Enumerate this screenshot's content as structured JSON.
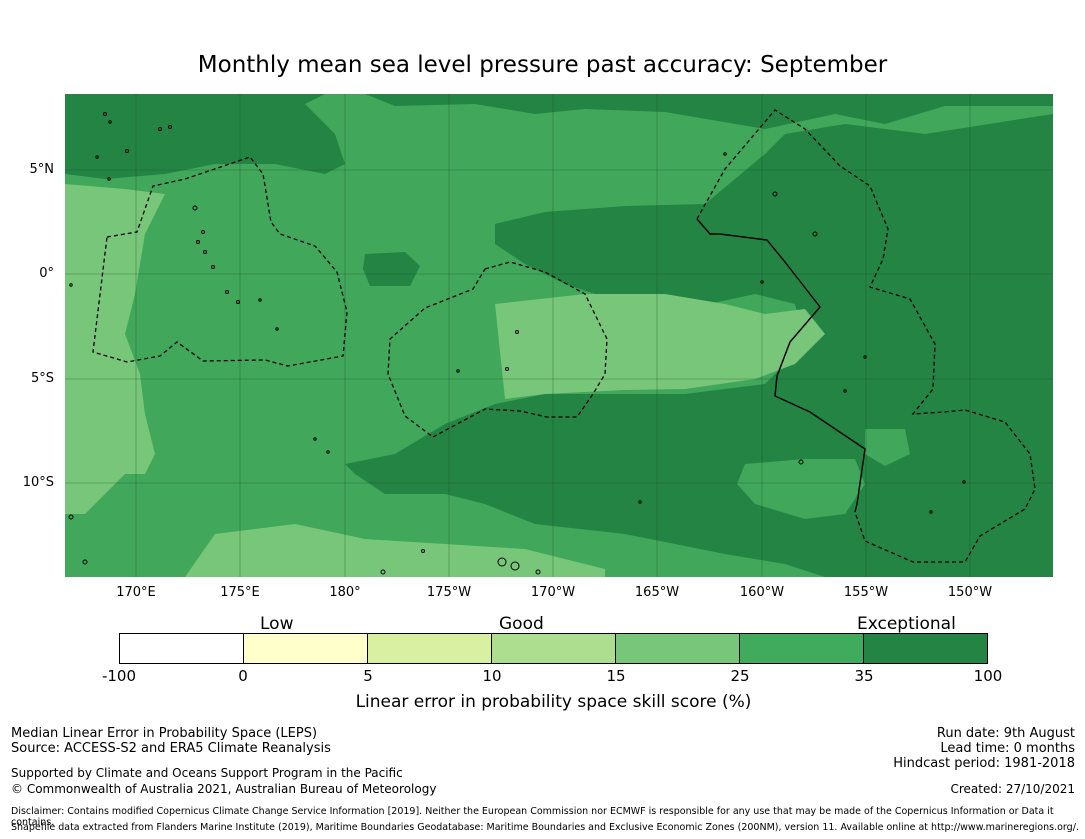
{
  "title": "Monthly mean sea level pressure past accuracy: September",
  "map": {
    "colors": {
      "zone_mid": "#40a75b",
      "zone_light": "#78c679",
      "zone_dark": "#238443",
      "coast": "#000000",
      "grid": "#1a4a2a"
    },
    "lat_labels": [
      "5°N",
      "0°",
      "5°S",
      "10°S"
    ],
    "lon_labels": [
      "170°E",
      "175°E",
      "180°",
      "175°W",
      "170°W",
      "165°W",
      "160°W",
      "155°W",
      "150°W"
    ]
  },
  "colorbar": {
    "categories": [
      "Low",
      "Good",
      "Exceptional"
    ],
    "ticks": [
      "-100",
      "0",
      "5",
      "10",
      "15",
      "25",
      "35",
      "100"
    ],
    "colors": [
      "#ffffff",
      "#ffffcc",
      "#d9f0a3",
      "#addd8e",
      "#78c679",
      "#41ab5d",
      "#238443"
    ],
    "title": "Linear error in probability space skill score (%)"
  },
  "footer": {
    "left_line1": "Median Linear Error in Probability Space (LEPS)",
    "left_line2": "Source: ACCESS-S2 and ERA5 Climate Reanalysis",
    "left_line3": "Supported by Climate and Oceans Support Program in the Pacific",
    "left_line4": "© Commonwealth of Australia 2021, Australian Bureau of Meteorology",
    "right_line1": "Run date: 9th August",
    "right_line2": "Lead time: 0 months",
    "right_line3": "Hindcast period: 1981-2018",
    "right_created": "Created: 27/10/2021",
    "disclaimer": "Disclaimer: Contains modified Copernicus Climate Change Service Information [2019]. Neither the European Commission nor ECMWF is responsible for any use that may be made of the Copernicus Information or Data it contains.",
    "shapefile": "Shapefile data extracted from Flanders Marine Institute (2019), Maritime Boundaries Geodatabase: Maritime Boundaries and Exclusive Economic Zones (200NM), version 11. Available online at http://www.marineregions.org/."
  }
}
